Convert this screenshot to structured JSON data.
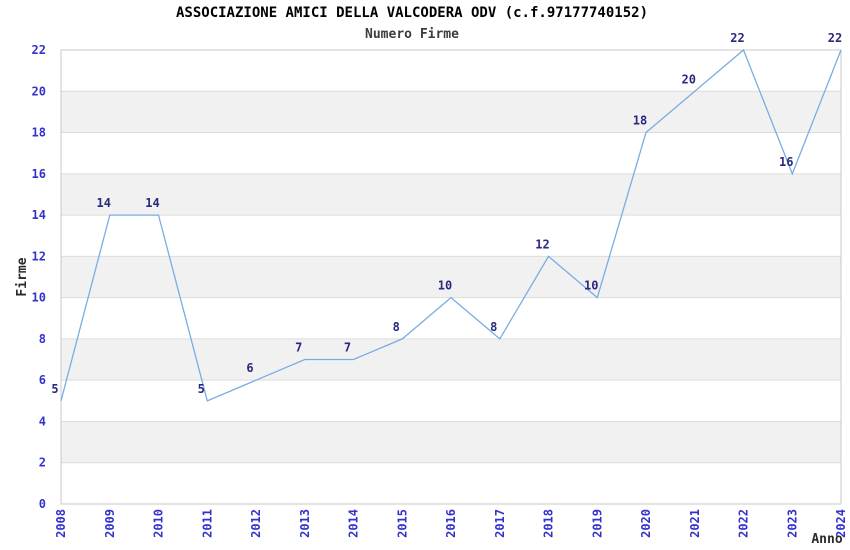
{
  "header": {
    "title": "ASSOCIAZIONE AMICI DELLA VALCODERA ODV (c.f.97177740152)",
    "subtitle": "Numero Firme"
  },
  "chart_data": {
    "type": "line",
    "title": "ASSOCIAZIONE AMICI DELLA VALCODERA ODV (c.f.97177740152)",
    "subtitle": "Numero Firme",
    "xlabel": "Anno",
    "ylabel": "Firme",
    "categories": [
      "2008",
      "2009",
      "2010",
      "2011",
      "2012",
      "2013",
      "2014",
      "2015",
      "2016",
      "2017",
      "2018",
      "2019",
      "2020",
      "2021",
      "2022",
      "2023",
      "2024"
    ],
    "values": [
      5,
      14,
      14,
      5,
      6,
      7,
      7,
      8,
      10,
      8,
      12,
      10,
      18,
      20,
      22,
      16,
      22
    ],
    "ylim": [
      0,
      22
    ],
    "ytick_step": 2,
    "grid": "horizontal-every-2",
    "legend_position": "none",
    "point_labels_visible": true,
    "x_tick_rotation_deg": -90,
    "colors": {
      "line": "#79ADE3",
      "point_label": "#29297E",
      "tick_label": "#3333CC",
      "axis_title": "#2b2b2b",
      "band": "#F1F1F1",
      "gridline": "#DCDCDC",
      "plot_border": "#C9C9C9",
      "title": "#000000",
      "subtitle": "#3c3c3c",
      "background": "#FFFFFF"
    }
  }
}
